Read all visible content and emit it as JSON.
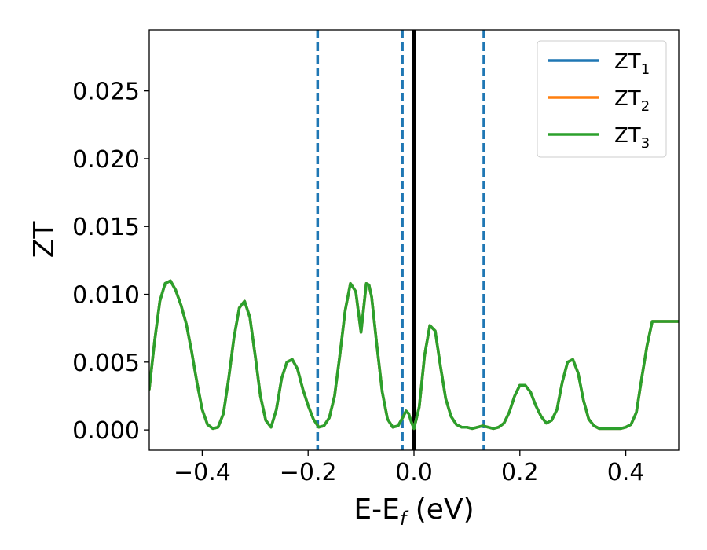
{
  "chart_data": {
    "type": "line",
    "xlabel_main": "E-E",
    "xlabel_sub": "f",
    "xlabel_unit": " (eV)",
    "ylabel": "ZT",
    "xlim": [
      -0.5,
      0.5
    ],
    "ylim": [
      -0.0015,
      0.0295
    ],
    "x_ticks": [
      -0.4,
      -0.2,
      0.0,
      0.2,
      0.4
    ],
    "x_tick_labels": [
      "−0.4",
      "−0.2",
      "0.0",
      "0.2",
      "0.4"
    ],
    "y_ticks": [
      0.0,
      0.005,
      0.01,
      0.015,
      0.02,
      0.025
    ],
    "y_tick_labels": [
      "0.000",
      "0.005",
      "0.010",
      "0.015",
      "0.020",
      "0.025"
    ],
    "grid": false,
    "legend_position": "top-right",
    "series": [
      {
        "name_base": "ZT",
        "name_sub": "1",
        "color": "#1f77b4",
        "x": [
          -0.5,
          -0.49,
          -0.48,
          -0.47,
          -0.46,
          -0.45,
          -0.44,
          -0.43,
          -0.42,
          -0.41,
          -0.4,
          -0.39,
          -0.38,
          -0.37,
          -0.36,
          -0.35,
          -0.34,
          -0.33,
          -0.32,
          -0.31,
          -0.3,
          -0.29,
          -0.28,
          -0.27,
          -0.26,
          -0.25,
          -0.24,
          -0.23,
          -0.22,
          -0.21,
          -0.2,
          -0.19,
          -0.18,
          -0.17,
          -0.16,
          -0.15,
          -0.14,
          -0.13,
          -0.12,
          -0.11,
          -0.1,
          -0.09,
          -0.085,
          -0.08,
          -0.07,
          -0.06,
          -0.05,
          -0.04,
          -0.03,
          -0.02,
          -0.015,
          -0.01,
          -0.005,
          0.0,
          0.01,
          0.02,
          0.03,
          0.04,
          0.05,
          0.06,
          0.07,
          0.08,
          0.09,
          0.1,
          0.11,
          0.12,
          0.13,
          0.14,
          0.15,
          0.16,
          0.17,
          0.18,
          0.19,
          0.2,
          0.21,
          0.22,
          0.23,
          0.24,
          0.25,
          0.26,
          0.27,
          0.28,
          0.29,
          0.3,
          0.31,
          0.32,
          0.33,
          0.34,
          0.35,
          0.36,
          0.37,
          0.38,
          0.39,
          0.4,
          0.41,
          0.42,
          0.43,
          0.44,
          0.45,
          0.46,
          0.47,
          0.48,
          0.49,
          0.5
        ],
        "y": [
          0.003,
          0.0065,
          0.0095,
          0.0108,
          0.011,
          0.0103,
          0.0092,
          0.0078,
          0.0058,
          0.0035,
          0.0015,
          0.0004,
          0.0001,
          0.0002,
          0.0012,
          0.0038,
          0.0068,
          0.009,
          0.0095,
          0.0083,
          0.0055,
          0.0025,
          0.0007,
          0.0002,
          0.0015,
          0.0038,
          0.005,
          0.0052,
          0.0045,
          0.003,
          0.0018,
          0.0008,
          0.0002,
          0.0003,
          0.0009,
          0.0025,
          0.0055,
          0.0088,
          0.0108,
          0.0102,
          0.0072,
          0.0108,
          0.0107,
          0.0098,
          0.0062,
          0.0028,
          0.0008,
          0.0002,
          0.0003,
          0.001,
          0.0014,
          0.0012,
          0.0006,
          0.0001,
          0.0017,
          0.0055,
          0.0077,
          0.0073,
          0.0047,
          0.0023,
          0.001,
          0.0004,
          0.0002,
          0.0002,
          0.0001,
          0.0002,
          0.0003,
          0.0002,
          0.0001,
          0.0002,
          0.0005,
          0.0013,
          0.0025,
          0.0033,
          0.0033,
          0.0028,
          0.0018,
          0.001,
          0.0005,
          0.0007,
          0.0015,
          0.0035,
          0.005,
          0.0052,
          0.0042,
          0.0022,
          0.0008,
          0.0003,
          0.0001,
          0.0001,
          0.0001,
          0.0001,
          0.0001,
          0.0002,
          0.0004,
          0.0013,
          0.0038,
          0.0062,
          0.008,
          0.008,
          0.008,
          0.008,
          0.008,
          0.008
        ]
      },
      {
        "name_base": "ZT",
        "name_sub": "2",
        "color": "#ff7f0e",
        "same_as_series": 0
      },
      {
        "name_base": "ZT",
        "name_sub": "3",
        "color": "#2ca02c",
        "same_as_series": 0
      }
    ],
    "vlines": [
      {
        "x": -0.182,
        "style": "dashed",
        "color": "#1f77b4"
      },
      {
        "x": -0.022,
        "style": "dashed",
        "color": "#1f77b4"
      },
      {
        "x": 0.0,
        "style": "solid",
        "color": "#000000"
      },
      {
        "x": 0.132,
        "style": "dashed",
        "color": "#1f77b4"
      }
    ]
  }
}
